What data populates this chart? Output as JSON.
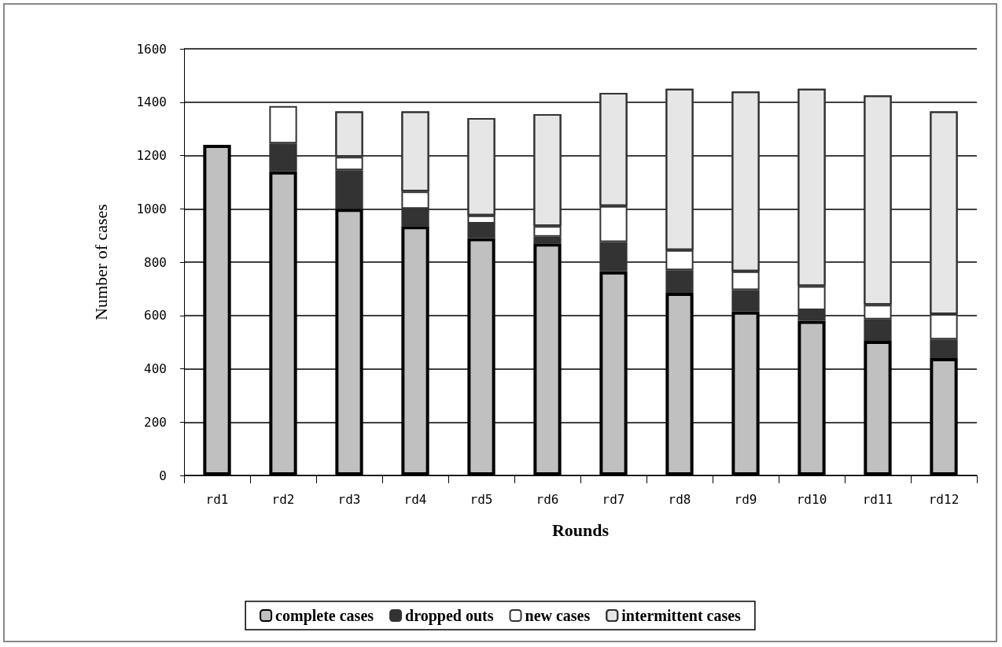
{
  "chart_data": {
    "type": "bar",
    "stacked": true,
    "xlabel": "Rounds",
    "ylabel": "Number of cases",
    "categories": [
      "rd1",
      "rd2",
      "rd3",
      "rd4",
      "rd5",
      "rd6",
      "rd7",
      "rd8",
      "rd9",
      "rd10",
      "rd11",
      "rd12"
    ],
    "series": [
      {
        "name": "complete cases",
        "color": "#c0c0c0",
        "values": [
          1240,
          1140,
          1000,
          935,
          890,
          870,
          765,
          685,
          615,
          580,
          505,
          440
        ]
      },
      {
        "name": "dropped outs",
        "color": "#333333",
        "values": [
          null,
          105,
          145,
          65,
          55,
          25,
          110,
          85,
          80,
          40,
          80,
          70
        ]
      },
      {
        "name": "new cases",
        "color": "#ffffff",
        "values": [
          null,
          140,
          50,
          65,
          30,
          40,
          135,
          75,
          70,
          90,
          55,
          95
        ]
      },
      {
        "name": "intermittent cases",
        "color": "#e6e6e6",
        "values": [
          null,
          null,
          170,
          300,
          365,
          420,
          425,
          605,
          675,
          740,
          785,
          760
        ]
      }
    ],
    "ylim": [
      0,
      1600
    ],
    "yticks": [
      0,
      200,
      400,
      600,
      800,
      1000,
      1200,
      1400,
      1600
    ],
    "grid": "y",
    "legend": "bottom"
  }
}
